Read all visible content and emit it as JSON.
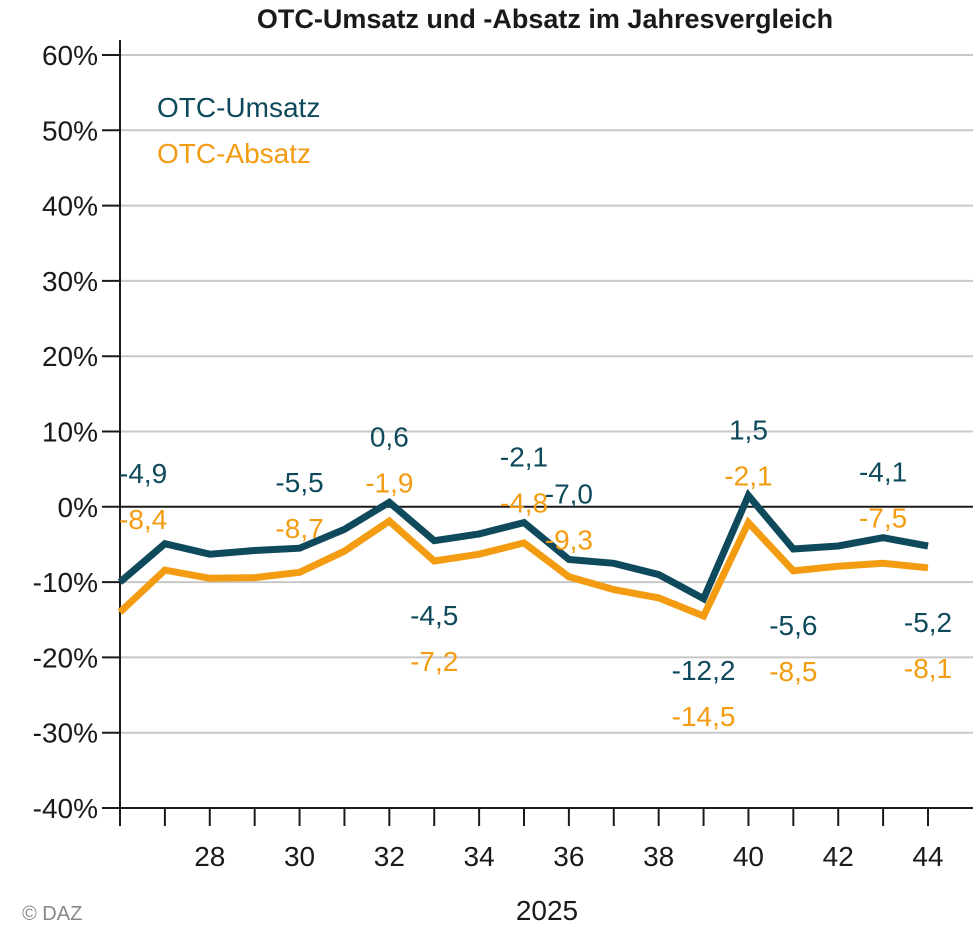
{
  "chart_data": {
    "type": "line",
    "title": "OTC-Umsatz und -Absatz im Jahresvergleich",
    "xlabel": "2025",
    "ylabel": "",
    "x": [
      26,
      27,
      28,
      29,
      30,
      31,
      32,
      33,
      34,
      35,
      36,
      37,
      38,
      39,
      40,
      41,
      42,
      43,
      44
    ],
    "x_tick_labels": [
      "28",
      "30",
      "32",
      "34",
      "36",
      "38",
      "40",
      "42",
      "44"
    ],
    "x_tick_label_values": [
      28,
      30,
      32,
      34,
      36,
      38,
      40,
      42,
      44
    ],
    "ylim": [
      -40,
      60
    ],
    "y_ticks": [
      60,
      50,
      40,
      30,
      20,
      10,
      0,
      -10,
      -20,
      -30,
      -40
    ],
    "y_tick_labels": [
      "60%",
      "50%",
      "40%",
      "30%",
      "20%",
      "10%",
      "0%",
      "-10%",
      "-20%",
      "-30%",
      "-40%"
    ],
    "grid": true,
    "legend_position": "top-left",
    "series": [
      {
        "name": "OTC-Umsatz",
        "color": "#0f4a5c",
        "values": [
          -10.0,
          -4.9,
          -6.3,
          -5.8,
          -5.5,
          -3.0,
          0.6,
          -4.5,
          -3.6,
          -2.1,
          -7.0,
          -7.5,
          -9.0,
          -12.2,
          1.5,
          -5.6,
          -5.2,
          -4.1,
          -5.2
        ],
        "labels": [
          {
            "x": 27,
            "text": "-4,9"
          },
          {
            "x": 30,
            "text": "-5,5"
          },
          {
            "x": 32,
            "text": "0,6"
          },
          {
            "x": 33,
            "text": "-4,5"
          },
          {
            "x": 35,
            "text": "-2,1"
          },
          {
            "x": 36,
            "text": "-7,0"
          },
          {
            "x": 39,
            "text": "-12,2"
          },
          {
            "x": 40,
            "text": "1,5"
          },
          {
            "x": 41,
            "text": "-5,6"
          },
          {
            "x": 43,
            "text": "-4,1"
          },
          {
            "x": 44,
            "text": "-5,2"
          }
        ]
      },
      {
        "name": "OTC-Absatz",
        "color": "#f39c12",
        "values": [
          -14.0,
          -8.4,
          -9.5,
          -9.4,
          -8.7,
          -5.9,
          -1.9,
          -7.2,
          -6.3,
          -4.8,
          -9.3,
          -11.0,
          -12.1,
          -14.5,
          -2.1,
          -8.5,
          -7.9,
          -7.5,
          -8.1
        ],
        "labels": [
          {
            "x": 27,
            "text": "-8,4"
          },
          {
            "x": 30,
            "text": "-8,7"
          },
          {
            "x": 32,
            "text": "-1,9"
          },
          {
            "x": 33,
            "text": "-7,2"
          },
          {
            "x": 35,
            "text": "-4,8"
          },
          {
            "x": 36,
            "text": "-9,3"
          },
          {
            "x": 39,
            "text": "-14,5"
          },
          {
            "x": 40,
            "text": "-2,1"
          },
          {
            "x": 41,
            "text": "-8,5"
          },
          {
            "x": 43,
            "text": "-7,5"
          },
          {
            "x": 44,
            "text": "-8,1"
          }
        ]
      }
    ]
  },
  "legend": {
    "items": [
      {
        "label": "OTC-Umsatz",
        "color": "#0f4a5c"
      },
      {
        "label": "OTC-Absatz",
        "color": "#f39c12"
      }
    ]
  },
  "source": "© DAZ"
}
